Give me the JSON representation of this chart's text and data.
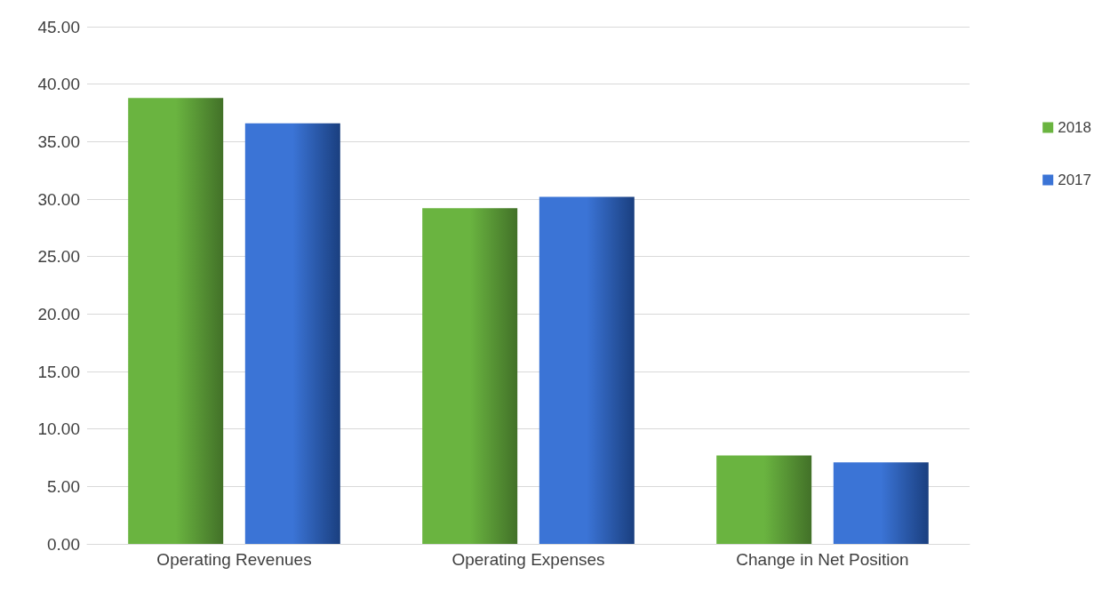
{
  "chart_data": {
    "type": "bar",
    "categories": [
      "Operating Revenues",
      "Operating Expenses",
      "Change in Net Position"
    ],
    "series": [
      {
        "name": "2018",
        "color": "#6ab440",
        "values": [
          38.8,
          29.2,
          7.7
        ]
      },
      {
        "name": "2017",
        "color": "#3b74d6",
        "values": [
          36.6,
          30.2,
          7.1
        ]
      }
    ],
    "ylim": [
      0,
      45
    ],
    "yticks": [
      {
        "value": 0,
        "label": "0.00"
      },
      {
        "value": 5,
        "label": "5.00"
      },
      {
        "value": 10,
        "label": "10.00"
      },
      {
        "value": 15,
        "label": "15.00"
      },
      {
        "value": 20,
        "label": "20.00"
      },
      {
        "value": 25,
        "label": "25.00"
      },
      {
        "value": 30,
        "label": "30.00"
      },
      {
        "value": 35,
        "label": "35.00"
      },
      {
        "value": 40,
        "label": "40.00"
      },
      {
        "value": 45,
        "label": "45.00"
      }
    ],
    "grid": "y",
    "legend": "right"
  }
}
